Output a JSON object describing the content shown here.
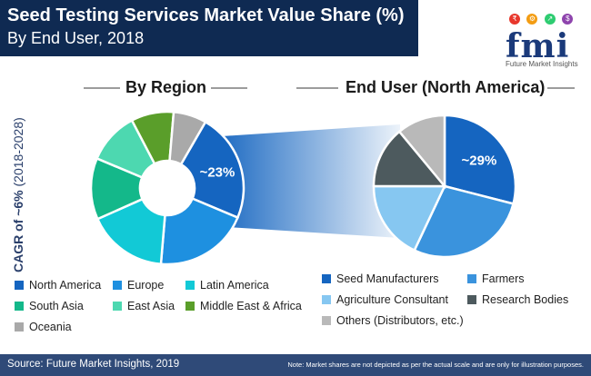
{
  "header": {
    "title": "Seed Testing Services Market Value Share (%)",
    "subtitle": "By End User, 2018"
  },
  "logo": {
    "text": "fmi",
    "tagline": "Future Market Insights",
    "icons": [
      "₹",
      "⚙",
      "↗",
      "$"
    ]
  },
  "cagr": {
    "label": "CAGR of ~6%",
    "period": "(2018-2028)"
  },
  "chart_data": [
    {
      "type": "pie",
      "title": "By Region",
      "donut": true,
      "categories": [
        "North America",
        "Europe",
        "Latin America",
        "South Asia",
        "East Asia",
        "Middle East & Africa",
        "Oceania"
      ],
      "values": [
        23,
        20,
        17,
        13,
        11,
        9,
        7
      ],
      "colors": [
        "#1565c0",
        "#1e90e0",
        "#12c9d6",
        "#14b88a",
        "#4dd8b0",
        "#5a9e2a",
        "#a9a9a9"
      ],
      "highlight_label": "~23%"
    },
    {
      "type": "pie",
      "title": "End User (North America)",
      "categories": [
        "Seed Manufacturers",
        "Farmers",
        "Agriculture Consultant",
        "Research Bodies",
        "Others (Distributors, etc.)"
      ],
      "values": [
        29,
        28,
        18,
        14,
        11
      ],
      "colors": [
        "#1565c0",
        "#3a93dd",
        "#86c7f1",
        "#4d5a5e",
        "#b9b9b9"
      ],
      "highlight_label": "~29%"
    }
  ],
  "footer": {
    "source": "Source: Future Market Insights, 2019",
    "note": "Note: Market shares are not depicted as per the actual scale and are only for illustration purposes."
  }
}
